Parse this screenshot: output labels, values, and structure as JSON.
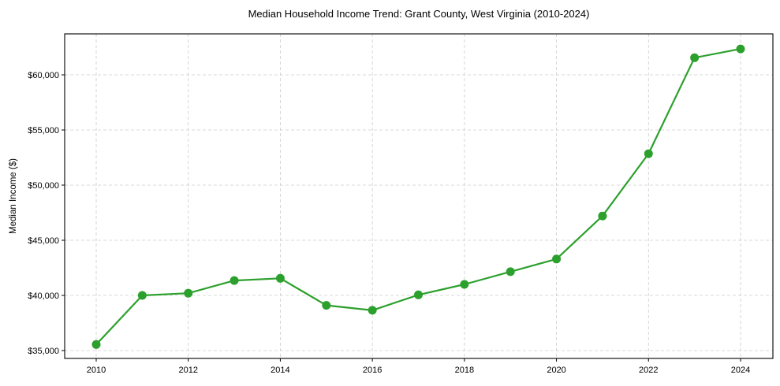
{
  "chart_data": {
    "type": "line",
    "title": "Median Household Income Trend: Grant County, West Virginia (2010-2024)",
    "xlabel": "",
    "ylabel": "Median Income ($)",
    "x": [
      2010,
      2011,
      2012,
      2013,
      2014,
      2015,
      2016,
      2017,
      2018,
      2019,
      2020,
      2021,
      2022,
      2023,
      2024
    ],
    "series": [
      {
        "name": "Median Household Income",
        "color": "#2ca02c",
        "marker": "circle",
        "values": [
          35550,
          40000,
          40200,
          41350,
          41550,
          39100,
          38650,
          40050,
          41000,
          42150,
          43300,
          47200,
          52850,
          61550,
          62350
        ]
      }
    ],
    "xticks": [
      2010,
      2012,
      2014,
      2016,
      2018,
      2020,
      2022,
      2024
    ],
    "xtick_labels": [
      "2010",
      "2012",
      "2014",
      "2016",
      "2018",
      "2020",
      "2022",
      "2024"
    ],
    "yticks": [
      35000,
      40000,
      45000,
      50000,
      55000,
      60000
    ],
    "ytick_labels": [
      "$35,000",
      "$40,000",
      "$45,000",
      "$50,000",
      "$55,000",
      "$60,000"
    ],
    "xlim": [
      2009.3,
      2024.7
    ],
    "ylim": [
      34600,
      63700
    ],
    "grid": true,
    "grid_style": "dashed",
    "legend": null
  }
}
